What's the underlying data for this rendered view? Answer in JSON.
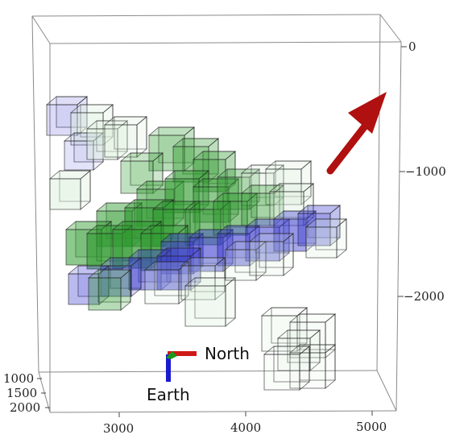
{
  "plot": {
    "type": "3d-box-plot",
    "right_axis": {
      "ticks": [
        "0",
        "−1000",
        "−2000"
      ]
    },
    "bottom_axis": {
      "ticks": [
        "3000",
        "4000",
        "5000"
      ]
    },
    "depth_axis": {
      "ticks": [
        "1000",
        "1500",
        "2000"
      ]
    },
    "box_colors": {
      "blue": "#3a3ad0",
      "green": "#2f9a2f",
      "pale": "#dcefdc",
      "outline": "#222222"
    },
    "arrow_color": "#b01010"
  },
  "compass": {
    "north_label": "North",
    "earth_label": "Earth",
    "north_color": "#d01818",
    "earth_color": "#1a1ad0",
    "up_color": "#1a9a1a"
  }
}
